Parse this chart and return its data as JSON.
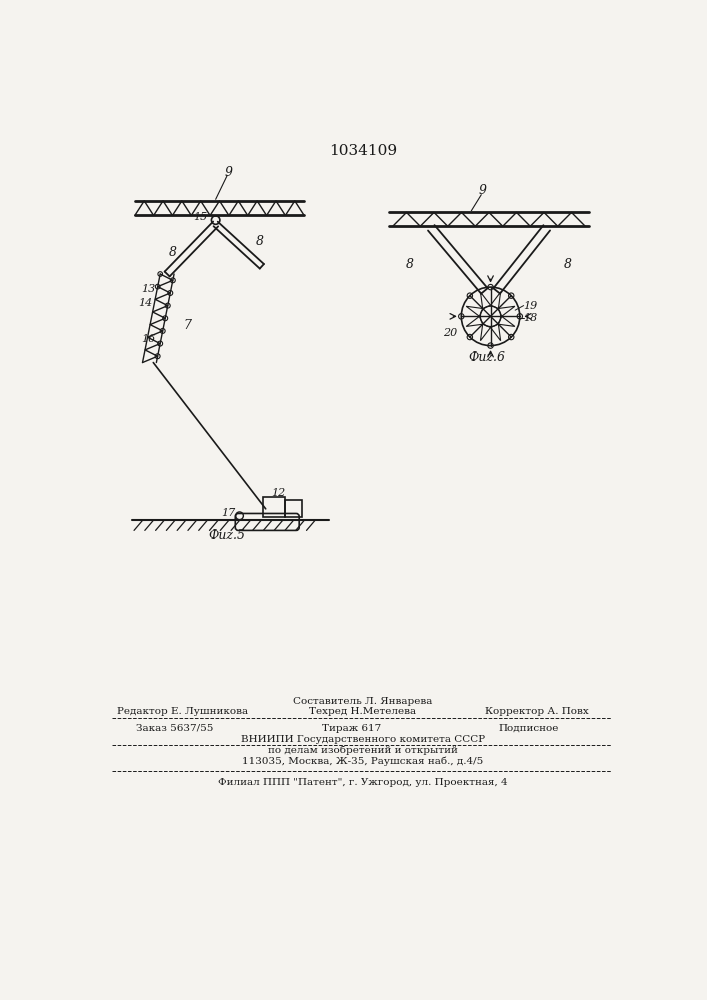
{
  "title": "1034109",
  "bg_color": "#f5f3ef",
  "line_color": "#1a1a1a",
  "fig5_caption": "Фuz.5",
  "fig6_caption": "Фuz.6",
  "footer_col1": "Редактор Е. Лушникова",
  "footer_col2_line1": "Составитель Л. Январева",
  "footer_col2_line2": "Техред Н.Метелева",
  "footer_col3": "Корректор А. Повх",
  "footer_order": "Заказ 5637/55",
  "footer_tiraz": "Тираж 617",
  "footer_podp": "Подписное",
  "footer_org1": "ВНИИПИ Государственного комитета СССР",
  "footer_org2": "по делам изобретений и открытий",
  "footer_org3": "113035, Москва, Ж-35, Раушская наб., д.4/5",
  "footer_filial": "Филиал ППП \"Патент\", г. Ужгород, ул. Проектная, 4"
}
